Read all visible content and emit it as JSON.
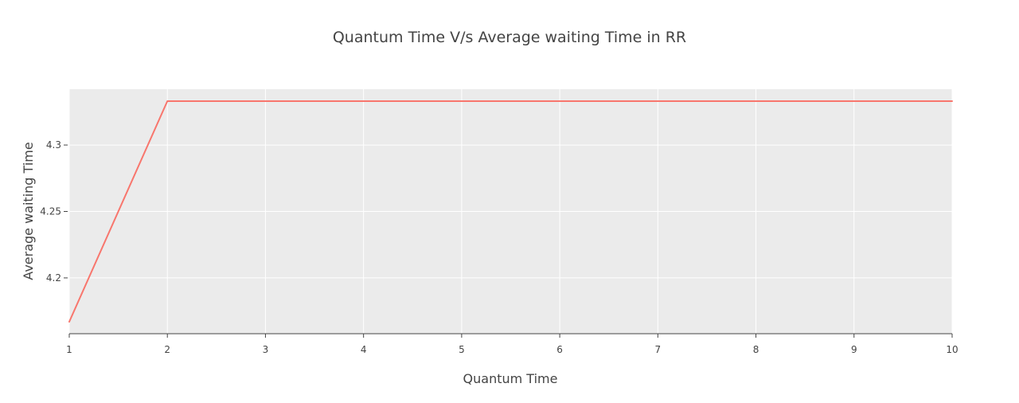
{
  "chart_data": {
    "type": "line",
    "title": "Quantum Time V/s Average waiting Time in RR",
    "xlabel": "Quantum Time",
    "ylabel": "Average waiting Time",
    "x": [
      1,
      2,
      3,
      4,
      5,
      6,
      7,
      8,
      9,
      10
    ],
    "series": [
      {
        "values": [
          4.167,
          4.333,
          4.333,
          4.333,
          4.333,
          4.333,
          4.333,
          4.333,
          4.333,
          4.333
        ],
        "color": "#f8766d"
      }
    ],
    "xlim": [
      1,
      10
    ],
    "ylim": [
      4.158,
      4.342
    ],
    "x_ticks": [
      1,
      2,
      3,
      4,
      5,
      6,
      7,
      8,
      9,
      10
    ],
    "x_tick_labels": [
      "1",
      "2",
      "3",
      "4",
      "5",
      "6",
      "7",
      "8",
      "9",
      "10"
    ],
    "y_ticks": [
      4.2,
      4.25,
      4.3
    ],
    "y_tick_labels": [
      "4.2",
      "4.25",
      "4.3"
    ],
    "grid": true,
    "plot_background": "#ebebeb",
    "grid_color": "#ffffff",
    "axis_color": "#444444"
  }
}
